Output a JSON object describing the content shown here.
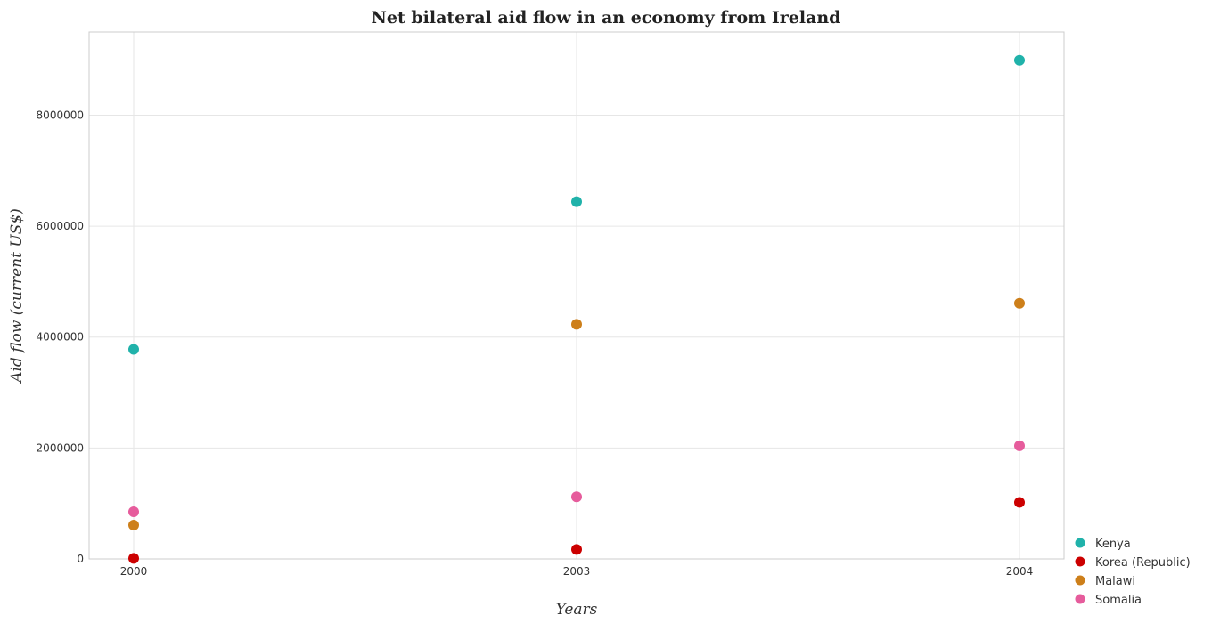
{
  "chart_data": {
    "type": "scatter",
    "title": "Net bilateral aid flow in an economy from Ireland",
    "xlabel": "Years",
    "ylabel": "Aid flow (current US$)",
    "categories": [
      "2000",
      "2003",
      "2004"
    ],
    "ylim": [
      0,
      9500000
    ],
    "yticks": [
      0,
      2000000,
      4000000,
      6000000,
      8000000
    ],
    "ytick_labels": [
      "0",
      "2000000",
      "4000000",
      "6000000",
      "8000000"
    ],
    "grid": true,
    "legend_position": "bottom-right",
    "series": [
      {
        "name": "Kenya",
        "color": "#20b2aa",
        "values": [
          3780000,
          6440000,
          8990000
        ]
      },
      {
        "name": "Korea (Republic)",
        "color": "#cc0000",
        "values": [
          10000,
          170000,
          1020000
        ]
      },
      {
        "name": "Malawi",
        "color": "#cd7f1a",
        "values": [
          610000,
          4230000,
          4610000
        ]
      },
      {
        "name": "Somalia",
        "color": "#e65c9c",
        "values": [
          850000,
          1120000,
          2040000
        ]
      }
    ]
  }
}
